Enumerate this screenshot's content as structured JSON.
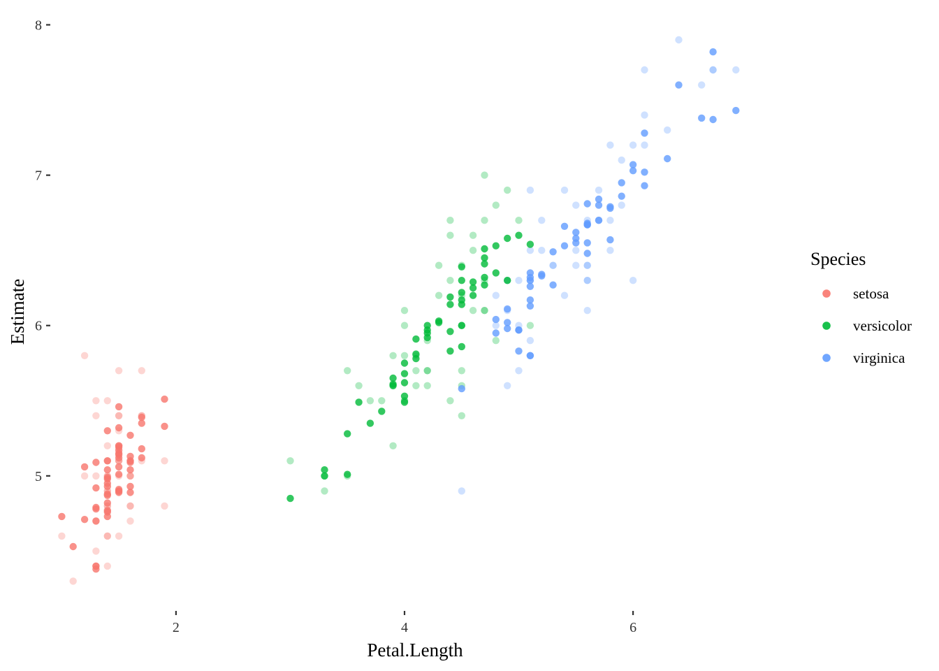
{
  "chart_data": {
    "type": "scatter",
    "title": "",
    "xlabel": "Petal.Length",
    "ylabel": "Estimate",
    "xlim": [
      0.9,
      7.1
    ],
    "ylim": [
      4.13,
      8.1
    ],
    "x_ticks": [
      2,
      4,
      6
    ],
    "x_tick_labels": [
      "2",
      "4",
      "6"
    ],
    "y_ticks": [
      5,
      6,
      7,
      8
    ],
    "y_tick_labels": [
      "5",
      "6",
      "7",
      "8"
    ],
    "grid": false,
    "legend": {
      "title": "Species",
      "position": "right"
    },
    "layers": [
      {
        "role": "observed",
        "alpha": 0.3
      },
      {
        "role": "estimate",
        "alpha": 0.8
      }
    ],
    "series": [
      {
        "name": "setosa",
        "color": "#F8766D",
        "observed": [
          [
            1.4,
            5.1
          ],
          [
            1.4,
            4.9
          ],
          [
            1.3,
            4.7
          ],
          [
            1.5,
            4.6
          ],
          [
            1.4,
            5.0
          ],
          [
            1.7,
            5.4
          ],
          [
            1.4,
            4.6
          ],
          [
            1.5,
            5.0
          ],
          [
            1.4,
            4.4
          ],
          [
            1.5,
            4.9
          ],
          [
            1.5,
            5.4
          ],
          [
            1.6,
            4.8
          ],
          [
            1.4,
            4.8
          ],
          [
            1.1,
            4.3
          ],
          [
            1.2,
            5.8
          ],
          [
            1.5,
            5.7
          ],
          [
            1.3,
            5.4
          ],
          [
            1.4,
            5.1
          ],
          [
            1.7,
            5.7
          ],
          [
            1.5,
            5.1
          ],
          [
            1.7,
            5.4
          ],
          [
            1.5,
            5.1
          ],
          [
            1.0,
            4.6
          ],
          [
            1.7,
            5.1
          ],
          [
            1.9,
            4.8
          ],
          [
            1.6,
            5.0
          ],
          [
            1.6,
            5.0
          ],
          [
            1.5,
            5.2
          ],
          [
            1.4,
            5.2
          ],
          [
            1.6,
            4.7
          ],
          [
            1.6,
            4.8
          ],
          [
            1.5,
            5.4
          ],
          [
            1.5,
            5.2
          ],
          [
            1.4,
            5.5
          ],
          [
            1.5,
            4.9
          ],
          [
            1.2,
            5.0
          ],
          [
            1.3,
            5.5
          ],
          [
            1.4,
            4.9
          ],
          [
            1.3,
            4.4
          ],
          [
            1.5,
            5.1
          ],
          [
            1.3,
            5.0
          ],
          [
            1.3,
            4.5
          ],
          [
            1.3,
            4.4
          ],
          [
            1.6,
            5.0
          ],
          [
            1.9,
            5.1
          ],
          [
            1.4,
            4.8
          ],
          [
            1.6,
            5.1
          ],
          [
            1.4,
            4.6
          ],
          [
            1.5,
            5.3
          ],
          [
            1.4,
            5.0
          ]
        ],
        "estimate": [
          [
            1.4,
            4.95
          ],
          [
            1.4,
            4.88
          ],
          [
            1.3,
            4.92
          ],
          [
            1.5,
            4.89
          ],
          [
            1.4,
            5.04
          ],
          [
            1.7,
            5.39
          ],
          [
            1.4,
            4.99
          ],
          [
            1.5,
            5.12
          ],
          [
            1.4,
            4.82
          ],
          [
            1.5,
            4.91
          ],
          [
            1.5,
            5.2
          ],
          [
            1.6,
            5.27
          ],
          [
            1.4,
            4.77
          ],
          [
            1.1,
            4.53
          ],
          [
            1.2,
            5.06
          ],
          [
            1.5,
            5.46
          ],
          [
            1.3,
            5.09
          ],
          [
            1.4,
            4.93
          ],
          [
            1.7,
            5.35
          ],
          [
            1.5,
            5.32
          ],
          [
            1.7,
            5.12
          ],
          [
            1.5,
            5.19
          ],
          [
            1.0,
            4.73
          ],
          [
            1.7,
            5.18
          ],
          [
            1.9,
            5.51
          ],
          [
            1.6,
            5.1
          ],
          [
            1.6,
            5.13
          ],
          [
            1.5,
            5.15
          ],
          [
            1.4,
            5.3
          ],
          [
            1.6,
            4.93
          ],
          [
            1.6,
            5.09
          ],
          [
            1.5,
            5.17
          ],
          [
            1.5,
            5.01
          ],
          [
            1.4,
            5.1
          ],
          [
            1.5,
            4.9
          ],
          [
            1.2,
            4.71
          ],
          [
            1.3,
            4.7
          ],
          [
            1.4,
            4.76
          ],
          [
            1.3,
            4.38
          ],
          [
            1.5,
            5.06
          ],
          [
            1.3,
            4.79
          ],
          [
            1.3,
            4.4
          ],
          [
            1.3,
            4.78
          ],
          [
            1.6,
            4.89
          ],
          [
            1.9,
            5.33
          ],
          [
            1.4,
            4.87
          ],
          [
            1.6,
            5.04
          ],
          [
            1.4,
            4.73
          ],
          [
            1.5,
            5.14
          ],
          [
            1.4,
            4.98
          ]
        ]
      },
      {
        "name": "versicolor",
        "color": "#00BA38",
        "observed": [
          [
            4.7,
            7.0
          ],
          [
            4.5,
            6.4
          ],
          [
            4.9,
            6.9
          ],
          [
            4.0,
            5.5
          ],
          [
            4.6,
            6.5
          ],
          [
            4.5,
            5.7
          ],
          [
            4.7,
            6.3
          ],
          [
            3.3,
            4.9
          ],
          [
            4.6,
            6.6
          ],
          [
            3.9,
            5.2
          ],
          [
            3.5,
            5.0
          ],
          [
            4.2,
            5.9
          ],
          [
            4.0,
            6.0
          ],
          [
            4.7,
            6.1
          ],
          [
            3.6,
            5.6
          ],
          [
            4.4,
            6.7
          ],
          [
            4.5,
            5.6
          ],
          [
            4.1,
            5.8
          ],
          [
            4.5,
            6.2
          ],
          [
            3.9,
            5.6
          ],
          [
            4.8,
            5.9
          ],
          [
            4.0,
            6.1
          ],
          [
            4.9,
            6.3
          ],
          [
            4.7,
            6.1
          ],
          [
            4.3,
            6.4
          ],
          [
            4.4,
            6.6
          ],
          [
            4.8,
            6.8
          ],
          [
            5.0,
            6.7
          ],
          [
            4.5,
            6.0
          ],
          [
            3.5,
            5.7
          ],
          [
            3.8,
            5.5
          ],
          [
            3.7,
            5.5
          ],
          [
            3.9,
            5.8
          ],
          [
            5.1,
            6.0
          ],
          [
            4.5,
            5.4
          ],
          [
            4.5,
            6.0
          ],
          [
            4.7,
            6.7
          ],
          [
            4.4,
            6.3
          ],
          [
            4.1,
            5.6
          ],
          [
            4.0,
            5.5
          ],
          [
            4.4,
            5.5
          ],
          [
            4.6,
            6.1
          ],
          [
            4.0,
            5.8
          ],
          [
            3.3,
            5.0
          ],
          [
            4.2,
            5.6
          ],
          [
            4.2,
            5.7
          ],
          [
            4.2,
            5.7
          ],
          [
            4.3,
            6.2
          ],
          [
            3.0,
            5.1
          ],
          [
            4.1,
            5.7
          ]
        ],
        "estimate": [
          [
            4.7,
            6.51
          ],
          [
            4.5,
            6.39
          ],
          [
            4.9,
            6.58
          ],
          [
            4.0,
            5.49
          ],
          [
            4.6,
            6.29
          ],
          [
            4.5,
            5.86
          ],
          [
            4.7,
            6.45
          ],
          [
            3.3,
            5.04
          ],
          [
            4.6,
            6.25
          ],
          [
            3.9,
            5.61
          ],
          [
            3.5,
            5.01
          ],
          [
            4.2,
            5.97
          ],
          [
            4.0,
            5.53
          ],
          [
            4.7,
            6.27
          ],
          [
            3.6,
            5.49
          ],
          [
            4.4,
            6.19
          ],
          [
            4.5,
            6.14
          ],
          [
            4.1,
            5.78
          ],
          [
            4.5,
            6.0
          ],
          [
            3.9,
            5.6
          ],
          [
            4.8,
            6.53
          ],
          [
            4.0,
            5.75
          ],
          [
            4.9,
            6.3
          ],
          [
            4.7,
            6.41
          ],
          [
            4.3,
            6.02
          ],
          [
            4.4,
            6.14
          ],
          [
            4.8,
            6.35
          ],
          [
            5.0,
            6.6
          ],
          [
            4.5,
            6.22
          ],
          [
            3.5,
            5.28
          ],
          [
            3.8,
            5.43
          ],
          [
            3.7,
            5.35
          ],
          [
            3.9,
            5.65
          ],
          [
            5.1,
            6.54
          ],
          [
            4.5,
            6.17
          ],
          [
            4.5,
            6.3
          ],
          [
            4.7,
            6.32
          ],
          [
            4.4,
            5.96
          ],
          [
            4.1,
            5.81
          ],
          [
            4.0,
            5.68
          ],
          [
            4.4,
            5.83
          ],
          [
            4.6,
            6.2
          ],
          [
            4.0,
            5.62
          ],
          [
            3.3,
            5.0
          ],
          [
            4.2,
            5.95
          ],
          [
            4.2,
            6.0
          ],
          [
            4.2,
            5.92
          ],
          [
            4.3,
            6.03
          ],
          [
            3.0,
            4.85
          ],
          [
            4.1,
            5.91
          ]
        ]
      },
      {
        "name": "virginica",
        "color": "#619CFF",
        "observed": [
          [
            6.0,
            6.3
          ],
          [
            5.1,
            5.8
          ],
          [
            5.9,
            7.1
          ],
          [
            5.6,
            6.3
          ],
          [
            5.8,
            6.5
          ],
          [
            6.6,
            7.6
          ],
          [
            4.5,
            4.9
          ],
          [
            6.3,
            7.3
          ],
          [
            5.8,
            6.7
          ],
          [
            6.1,
            7.2
          ],
          [
            5.1,
            6.5
          ],
          [
            5.3,
            6.4
          ],
          [
            5.5,
            6.8
          ],
          [
            5.0,
            5.7
          ],
          [
            5.1,
            5.8
          ],
          [
            5.3,
            6.4
          ],
          [
            5.5,
            6.5
          ],
          [
            6.7,
            7.7
          ],
          [
            6.9,
            7.7
          ],
          [
            5.0,
            6.0
          ],
          [
            5.7,
            6.9
          ],
          [
            4.9,
            5.6
          ],
          [
            6.7,
            7.7
          ],
          [
            4.9,
            6.3
          ],
          [
            5.7,
            6.7
          ],
          [
            6.0,
            7.2
          ],
          [
            4.8,
            6.2
          ],
          [
            4.9,
            6.1
          ],
          [
            5.6,
            6.4
          ],
          [
            5.8,
            7.2
          ],
          [
            6.1,
            7.4
          ],
          [
            6.4,
            7.9
          ],
          [
            5.6,
            6.4
          ],
          [
            5.1,
            6.3
          ],
          [
            5.6,
            6.1
          ],
          [
            6.1,
            7.7
          ],
          [
            5.6,
            6.3
          ],
          [
            5.5,
            6.4
          ],
          [
            4.8,
            6.0
          ],
          [
            5.4,
            6.9
          ],
          [
            5.6,
            6.7
          ],
          [
            5.1,
            6.9
          ],
          [
            5.1,
            5.8
          ],
          [
            5.9,
            6.8
          ],
          [
            5.7,
            6.7
          ],
          [
            5.2,
            6.7
          ],
          [
            5.0,
            6.3
          ],
          [
            5.2,
            6.5
          ],
          [
            5.4,
            6.2
          ],
          [
            5.1,
            5.9
          ]
        ],
        "estimate": [
          [
            6.0,
            7.07
          ],
          [
            5.1,
            6.17
          ],
          [
            5.9,
            6.95
          ],
          [
            5.6,
            6.48
          ],
          [
            5.8,
            6.78
          ],
          [
            6.6,
            7.38
          ],
          [
            4.5,
            5.58
          ],
          [
            6.3,
            7.11
          ],
          [
            5.8,
            6.57
          ],
          [
            6.1,
            7.28
          ],
          [
            5.1,
            6.35
          ],
          [
            5.3,
            6.49
          ],
          [
            5.5,
            6.62
          ],
          [
            5.0,
            5.97
          ],
          [
            5.1,
            5.8
          ],
          [
            5.3,
            6.27
          ],
          [
            5.5,
            6.55
          ],
          [
            6.7,
            7.82
          ],
          [
            6.9,
            7.43
          ],
          [
            5.0,
            5.83
          ],
          [
            5.7,
            6.84
          ],
          [
            4.9,
            6.11
          ],
          [
            6.7,
            7.37
          ],
          [
            4.9,
            6.02
          ],
          [
            5.7,
            6.8
          ],
          [
            6.0,
            7.03
          ],
          [
            4.8,
            5.95
          ],
          [
            4.9,
            5.98
          ],
          [
            5.6,
            6.81
          ],
          [
            5.8,
            6.79
          ],
          [
            6.1,
            7.02
          ],
          [
            6.4,
            7.6
          ],
          [
            5.6,
            6.67
          ],
          [
            5.1,
            6.13
          ],
          [
            5.6,
            6.68
          ],
          [
            6.1,
            6.93
          ],
          [
            5.6,
            6.55
          ],
          [
            5.5,
            6.58
          ],
          [
            4.8,
            6.04
          ],
          [
            5.4,
            6.66
          ],
          [
            5.6,
            6.67
          ],
          [
            5.1,
            6.32
          ],
          [
            5.1,
            6.3
          ],
          [
            5.9,
            6.86
          ],
          [
            5.7,
            6.7
          ],
          [
            5.2,
            6.33
          ],
          [
            5.0,
            5.97
          ],
          [
            5.2,
            6.34
          ],
          [
            5.4,
            6.53
          ],
          [
            5.1,
            6.26
          ]
        ]
      }
    ]
  }
}
